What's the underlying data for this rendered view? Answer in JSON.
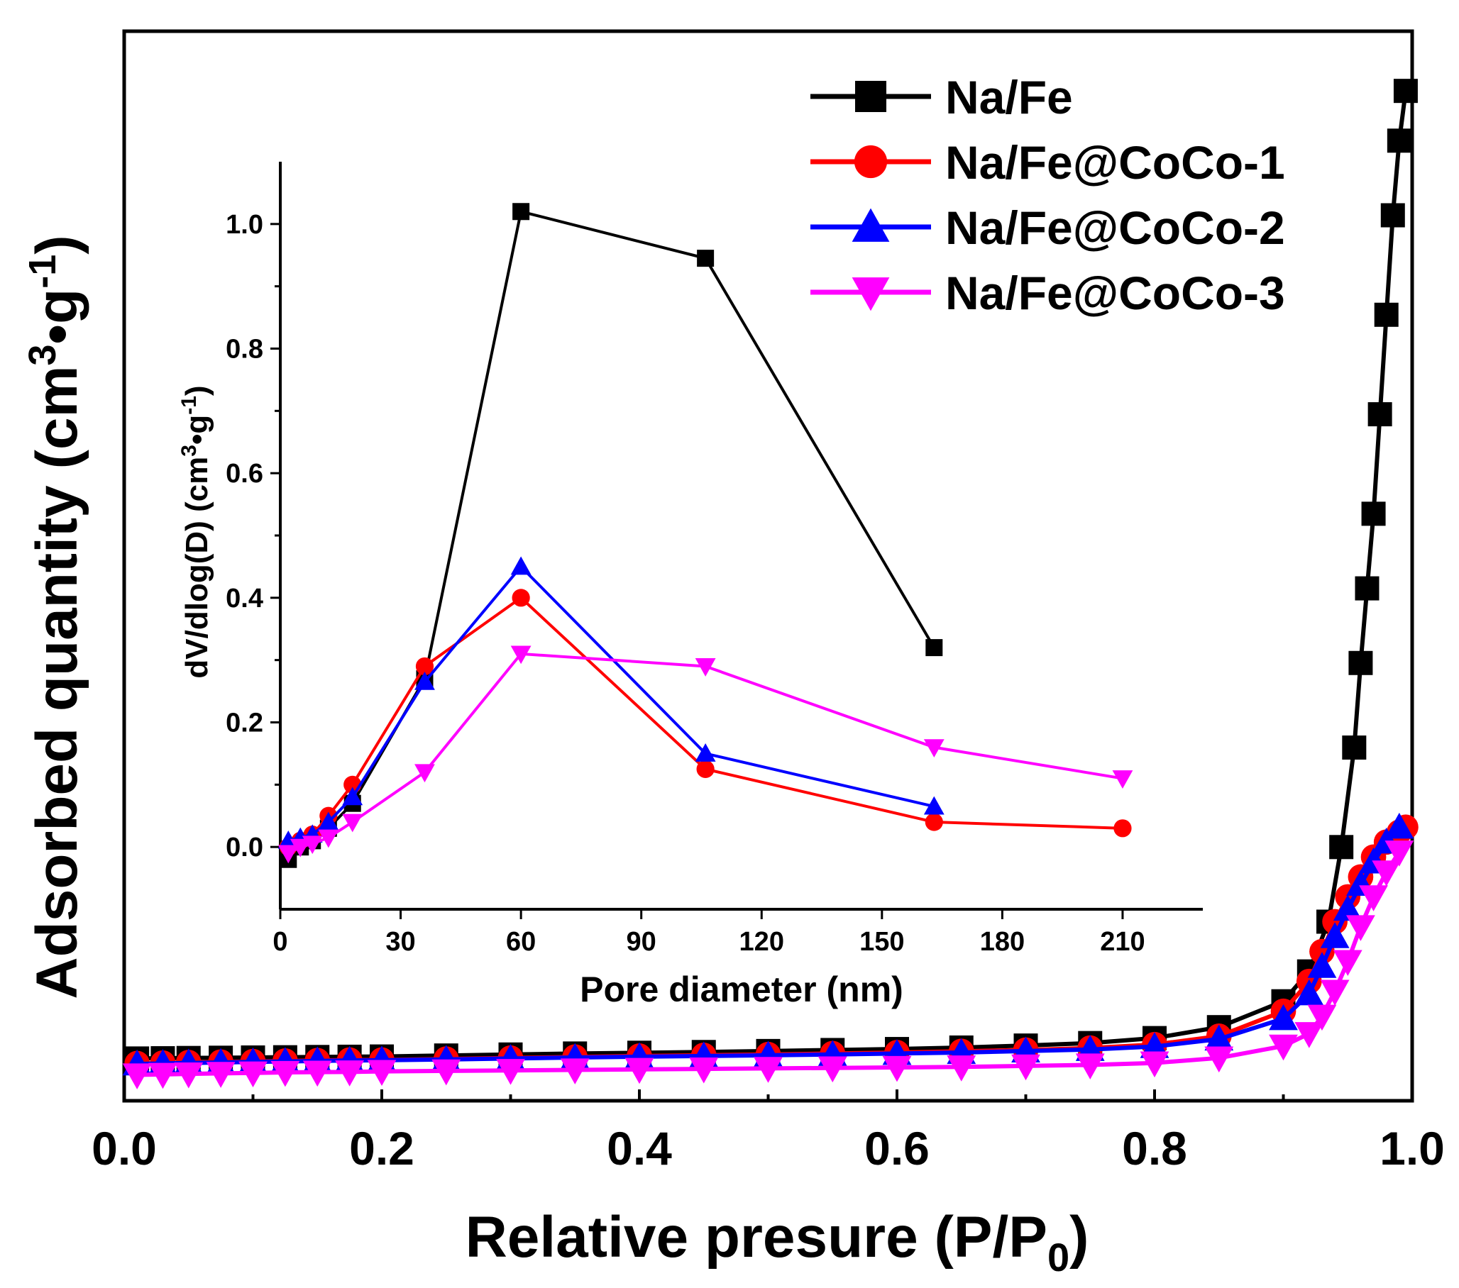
{
  "chart_data": [
    {
      "type": "scatter",
      "role": "main",
      "xlabel": "Relative presure (P/P",
      "xlabel_sub": "0",
      "xlabel_end": ")",
      "ylabel": "Adsorbed quantity (cm",
      "ylabel_sup3": "3",
      "ylabel_mid": "•g",
      "ylabel_sup_neg1": "-1",
      "ylabel_end": ")",
      "xlim": [
        0.0,
        1.0
      ],
      "xticks": [
        "0.0",
        "0.2",
        "0.4",
        "0.6",
        "0.8",
        "1.0"
      ],
      "yticks_shown": false,
      "legend_position": "top-right",
      "series": [
        {
          "name": "Na/Fe",
          "color": "#000000",
          "marker": "square",
          "x": [
            0.01,
            0.03,
            0.05,
            0.075,
            0.1,
            0.125,
            0.15,
            0.175,
            0.2,
            0.25,
            0.3,
            0.35,
            0.4,
            0.45,
            0.5,
            0.55,
            0.6,
            0.65,
            0.7,
            0.75,
            0.8,
            0.85,
            0.9,
            0.92,
            0.935,
            0.945,
            0.955,
            0.96,
            0.965,
            0.97,
            0.975,
            0.98,
            0.985,
            0.99,
            0.995
          ],
          "y": [
            55,
            55.5,
            56,
            56.5,
            57,
            57.5,
            58,
            58.5,
            59,
            61,
            63,
            65,
            66.5,
            68,
            70,
            72,
            74,
            77,
            81,
            86,
            96,
            118,
            170,
            230,
            330,
            480,
            680,
            850,
            1000,
            1150,
            1350,
            1550,
            1750,
            1900,
            2000
          ]
        },
        {
          "name": "Na/Fe@CoCo-1",
          "color": "#ff0000",
          "marker": "circle",
          "x": [
            0.01,
            0.03,
            0.05,
            0.075,
            0.1,
            0.125,
            0.15,
            0.175,
            0.2,
            0.25,
            0.3,
            0.35,
            0.4,
            0.45,
            0.5,
            0.55,
            0.6,
            0.65,
            0.7,
            0.75,
            0.8,
            0.85,
            0.9,
            0.92,
            0.93,
            0.94,
            0.95,
            0.96,
            0.97,
            0.98,
            0.99,
            0.995
          ],
          "y": [
            45,
            46,
            47,
            48,
            49,
            50,
            51,
            52,
            52,
            54,
            56,
            58,
            60,
            61.5,
            63,
            65,
            67,
            69.5,
            72,
            76,
            83,
            100,
            150,
            210,
            270,
            330,
            380,
            420,
            460,
            490,
            510,
            520
          ]
        },
        {
          "name": "Na/Fe@CoCo-2",
          "color": "#0000ff",
          "marker": "triangle-up",
          "x": [
            0.01,
            0.03,
            0.05,
            0.075,
            0.1,
            0.125,
            0.15,
            0.175,
            0.2,
            0.25,
            0.3,
            0.35,
            0.4,
            0.45,
            0.5,
            0.55,
            0.6,
            0.65,
            0.7,
            0.75,
            0.8,
            0.85,
            0.9,
            0.92,
            0.93,
            0.94,
            0.95,
            0.96,
            0.97,
            0.98,
            0.99
          ],
          "y": [
            44,
            45,
            46,
            47,
            48,
            49,
            50,
            51,
            51.5,
            53,
            55,
            57,
            58.5,
            60,
            61.5,
            63,
            65,
            67,
            70,
            73,
            79,
            94,
            135,
            185,
            240,
            300,
            355,
            405,
            450,
            490,
            520
          ]
        },
        {
          "name": "Na/Fe@CoCo-3",
          "color": "#ff00ff",
          "marker": "triangle-down",
          "x": [
            0.01,
            0.03,
            0.05,
            0.075,
            0.1,
            0.125,
            0.15,
            0.175,
            0.2,
            0.25,
            0.3,
            0.35,
            0.4,
            0.45,
            0.5,
            0.55,
            0.6,
            0.65,
            0.7,
            0.75,
            0.8,
            0.85,
            0.9,
            0.92,
            0.93,
            0.94,
            0.95,
            0.96,
            0.97,
            0.98,
            0.99
          ],
          "y": [
            22,
            23,
            24,
            25,
            26,
            27,
            27.5,
            28,
            29,
            30,
            31,
            32,
            33,
            34,
            35,
            36,
            37,
            38,
            40,
            42,
            46,
            56,
            80,
            105,
            140,
            190,
            250,
            320,
            380,
            430,
            470
          ]
        }
      ]
    },
    {
      "type": "line",
      "role": "inset",
      "xlabel": "Pore diameter (nm)",
      "ylabel": "dV/dlog(D) (cm",
      "ylabel_sup3": "3",
      "ylabel_mid": "•g",
      "ylabel_sup_neg1": "-1",
      "ylabel_end": ")",
      "xlim": [
        0,
        230
      ],
      "ylim": [
        -0.1,
        1.1
      ],
      "xticks": [
        "0",
        "30",
        "60",
        "90",
        "120",
        "150",
        "180",
        "210"
      ],
      "yticks": [
        "0.0",
        "0.2",
        "0.4",
        "0.6",
        "0.8",
        "1.0"
      ],
      "series": [
        {
          "name": "Na/Fe",
          "color": "#000000",
          "marker": "square",
          "x": [
            2,
            5,
            8,
            12,
            18,
            36,
            60,
            106,
            163
          ],
          "y": [
            -0.02,
            0.0,
            0.01,
            0.03,
            0.07,
            0.27,
            1.02,
            0.945,
            0.32
          ]
        },
        {
          "name": "Na/Fe@CoCo-1",
          "color": "#ff0000",
          "marker": "circle",
          "x": [
            2,
            5,
            8,
            12,
            18,
            36,
            60,
            106,
            163,
            210
          ],
          "y": [
            0.0,
            0.01,
            0.02,
            0.05,
            0.1,
            0.29,
            0.4,
            0.125,
            0.04,
            0.03
          ]
        },
        {
          "name": "Na/Fe@CoCo-2",
          "color": "#0000ff",
          "marker": "triangle-up",
          "x": [
            2,
            5,
            8,
            12,
            18,
            36,
            60,
            106,
            163
          ],
          "y": [
            0.01,
            0.015,
            0.02,
            0.04,
            0.08,
            0.265,
            0.45,
            0.15,
            0.065
          ]
        },
        {
          "name": "Na/Fe@CoCo-3",
          "color": "#ff00ff",
          "marker": "triangle-down",
          "x": [
            2,
            5,
            8,
            12,
            18,
            36,
            60,
            106,
            163,
            210
          ],
          "y": [
            -0.01,
            0.0,
            0.005,
            0.015,
            0.04,
            0.12,
            0.31,
            0.29,
            0.16,
            0.11
          ]
        }
      ]
    }
  ],
  "legend": {
    "entries": [
      "Na/Fe",
      "Na/Fe@CoCo-1",
      "Na/Fe@CoCo-2",
      "Na/Fe@CoCo-3"
    ],
    "colors": [
      "#000000",
      "#ff0000",
      "#0000ff",
      "#ff00ff"
    ],
    "markers": [
      "square",
      "circle",
      "triangle-up",
      "triangle-down"
    ]
  }
}
